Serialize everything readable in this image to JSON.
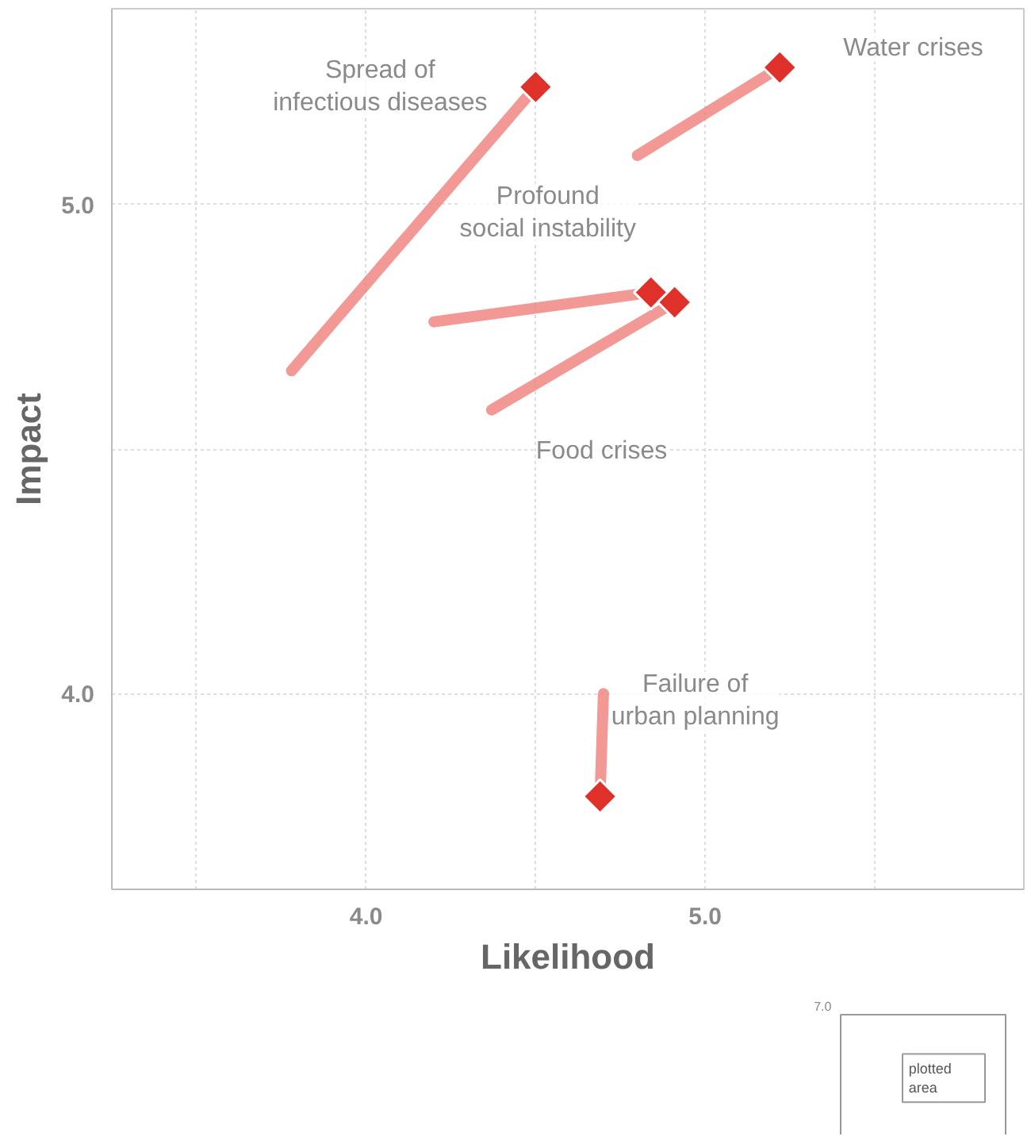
{
  "chart_data": {
    "type": "scatter",
    "xlabel": "Likelihood",
    "ylabel": "Impact",
    "xlim": [
      3.25,
      5.94
    ],
    "ylim": [
      3.6,
      5.4
    ],
    "xticks": [
      {
        "value": 3.5,
        "label": null
      },
      {
        "value": 4,
        "label": "4.0"
      },
      {
        "value": 4.5,
        "label": null
      },
      {
        "value": 5,
        "label": "5.0"
      },
      {
        "value": 5.5,
        "label": null
      }
    ],
    "yticks": [
      {
        "value": 4,
        "label": "4.0"
      },
      {
        "value": 4.5,
        "label": null
      },
      {
        "value": 5,
        "label": "5.0"
      }
    ],
    "grid": true,
    "marker": "diamond",
    "series": [
      {
        "type": "line",
        "marker": "none",
        "color": "#ef7f7a",
        "x": [
          3.78,
          4.5
        ],
        "values": [
          4.66,
          5.24
        ]
      },
      {
        "type": "line",
        "marker": "none",
        "color": "#ef7f7a",
        "x": [
          4.8,
          5.22
        ],
        "values": [
          5.1,
          5.28
        ]
      },
      {
        "type": "line",
        "marker": "none",
        "color": "#ef7f7a",
        "x": [
          4.2,
          4.84
        ],
        "values": [
          4.76,
          4.82
        ]
      },
      {
        "type": "line",
        "marker": "none",
        "color": "#ef7f7a",
        "x": [
          4.37,
          4.91
        ],
        "values": [
          4.58,
          4.8
        ]
      },
      {
        "type": "line",
        "marker": "none",
        "color": "#ef7f7a",
        "x": [
          4.7,
          4.69
        ],
        "values": [
          4.0,
          3.79
        ]
      },
      {
        "color": "#e0302a",
        "x": [
          4.5,
          5.22,
          4.84,
          4.91,
          4.69
        ],
        "values": [
          5.24,
          5.28,
          4.82,
          4.8,
          3.79
        ]
      }
    ],
    "annotations": [
      {
        "text": "Spread of\ninfectious diseases",
        "x": 4.5,
        "y": 5.24
      },
      {
        "text": "Water crises",
        "x": 5.22,
        "y": 5.28
      },
      {
        "text": "Profound\nsocial instability",
        "x": 4.84,
        "y": 4.82
      },
      {
        "text": "Food crises",
        "x": 4.37,
        "y": 4.58
      },
      {
        "text": "Failure of\nurban planning",
        "x": 4.69,
        "y": 3.79
      },
      "7.0",
      "plotted area"
    ]
  }
}
